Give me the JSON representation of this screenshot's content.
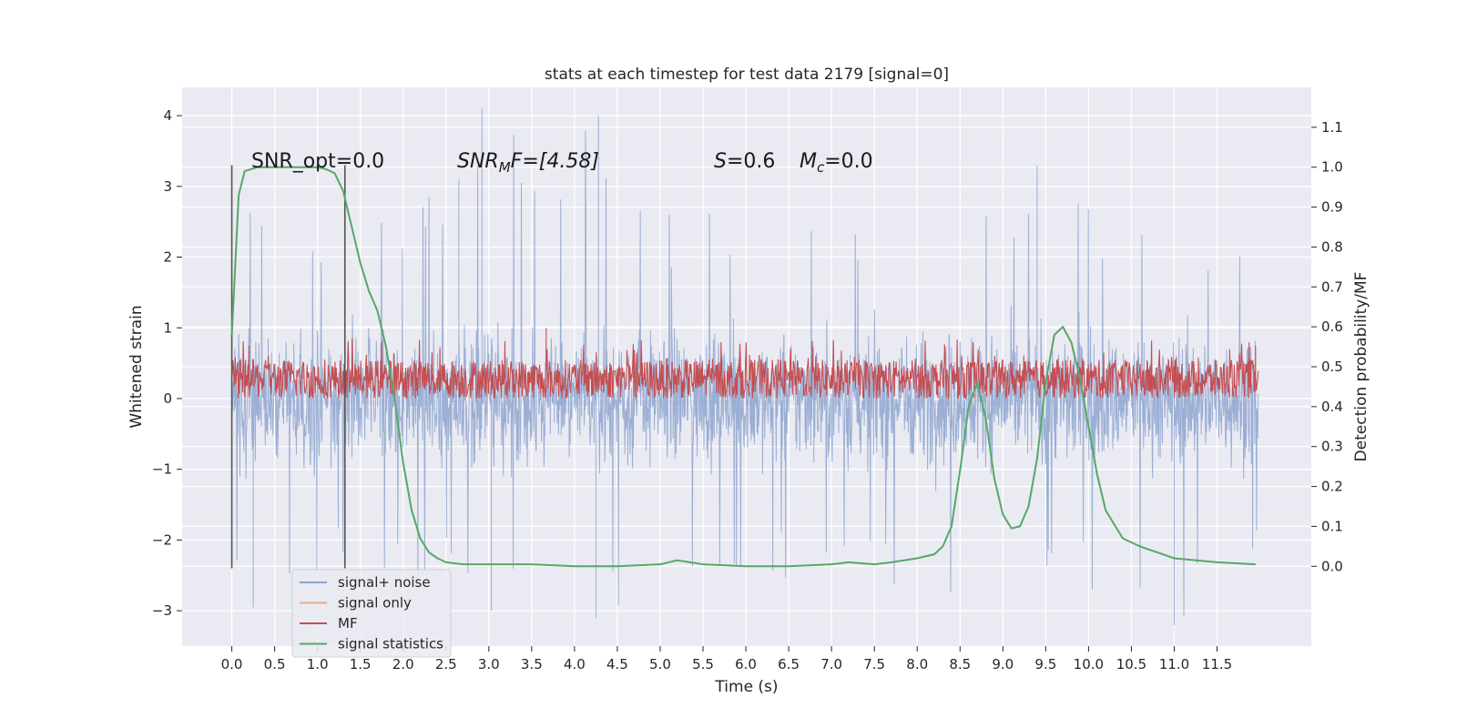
{
  "chart_data": {
    "type": "line",
    "title": "stats at each timestep for test data 2179 [signal=0]",
    "xlabel": "Time (s)",
    "ylabel_left": "Whitened strain",
    "ylabel_right": "Detection probability/MF",
    "xlim": [
      -0.58,
      12.6
    ],
    "ylim_left": [
      -3.5,
      4.4
    ],
    "ylim_right": [
      -0.2,
      1.2
    ],
    "grid": true,
    "x_ticks": [
      "0.0",
      "0.5",
      "1.0",
      "1.5",
      "2.0",
      "2.5",
      "3.0",
      "3.5",
      "4.0",
      "4.5",
      "5.0",
      "5.5",
      "6.0",
      "6.5",
      "7.0",
      "7.5",
      "8.0",
      "8.5",
      "9.0",
      "9.5",
      "10.0",
      "10.5",
      "11.0",
      "11.5"
    ],
    "y_ticks_left": [
      "−3",
      "−2",
      "−1",
      "0",
      "1",
      "2",
      "3",
      "4"
    ],
    "y_ticks_right": [
      "0.0",
      "0.1",
      "0.2",
      "0.3",
      "0.4",
      "0.5",
      "0.6",
      "0.7",
      "0.8",
      "0.9",
      "1.0",
      "1.1"
    ],
    "annotations": {
      "snr_opt": "SNR_opt=0.0",
      "snr_mf_var": "SNR",
      "snr_mf_sub": "M",
      "snr_mf_rest": "F=[4.58]",
      "s_var": "S",
      "s_rest": "=0.6",
      "mc_var": "M",
      "mc_sub": "c",
      "mc_rest": "=0.0"
    },
    "vlines": {
      "x": [
        0.0,
        1.32
      ],
      "y_range": [
        -2.4,
        3.3
      ]
    },
    "legend": {
      "position": "lower-left",
      "entries": [
        {
          "label": "signal+ noise",
          "color": "#8da4cf"
        },
        {
          "label": "signal only",
          "color": "#e9a990"
        },
        {
          "label": "MF",
          "color": "#c44e52"
        },
        {
          "label": "signal statistics",
          "color": "#55a868"
        }
      ]
    },
    "series": [
      {
        "name": "signal+ noise",
        "axis": "left",
        "color": "#8da4cf",
        "x_range": [
          0.0,
          11.98
        ],
        "envelope_x": [
          0.0,
          1.0,
          2.0,
          3.0,
          4.0,
          5.0,
          6.0,
          7.0,
          8.0,
          9.0,
          10.0,
          11.0,
          11.98
        ],
        "envelope_upper": [
          2.6,
          2.8,
          2.4,
          4.1,
          4.0,
          2.8,
          2.6,
          2.7,
          3.2,
          3.3,
          2.9,
          2.5,
          2.2
        ],
        "envelope_lower": [
          -2.6,
          -2.5,
          -2.8,
          -3.0,
          -3.1,
          -2.9,
          -2.6,
          -2.5,
          -3.0,
          -2.8,
          -2.7,
          -3.2,
          -2.4
        ],
        "peaks": [
          {
            "x": 2.92,
            "y": 4.1
          },
          {
            "x": 4.28,
            "y": 4.0
          },
          {
            "x": 2.65,
            "y": 3.1
          },
          {
            "x": 9.4,
            "y": 3.3
          },
          {
            "x": 4.25,
            "y": -3.1
          },
          {
            "x": 11.0,
            "y": -3.2
          },
          {
            "x": 0.25,
            "y": -2.95
          },
          {
            "x": 3.03,
            "y": -3.0
          }
        ]
      },
      {
        "name": "MF",
        "axis": "left",
        "color": "#c44e52",
        "x_range": [
          0.0,
          11.98
        ],
        "band_lower": 0.0,
        "band_upper": 0.55,
        "peaks": [
          {
            "x": 3.67,
            "y": 1.0
          },
          {
            "x": 0.2,
            "y": 0.75
          },
          {
            "x": 11.95,
            "y": 0.75
          }
        ]
      },
      {
        "name": "signal statistics",
        "axis": "right",
        "color": "#55a868",
        "x": [
          0.0,
          0.08,
          0.15,
          0.3,
          0.5,
          0.8,
          1.0,
          1.1,
          1.2,
          1.3,
          1.4,
          1.5,
          1.6,
          1.7,
          1.8,
          1.9,
          2.0,
          2.1,
          2.2,
          2.3,
          2.4,
          2.5,
          2.7,
          3.0,
          3.5,
          4.0,
          4.5,
          5.0,
          5.2,
          5.5,
          6.0,
          6.5,
          7.0,
          7.2,
          7.5,
          7.7,
          8.0,
          8.2,
          8.3,
          8.4,
          8.5,
          8.6,
          8.7,
          8.8,
          8.9,
          9.0,
          9.1,
          9.2,
          9.3,
          9.4,
          9.5,
          9.6,
          9.7,
          9.8,
          9.9,
          10.0,
          10.1,
          10.2,
          10.4,
          10.6,
          10.8,
          11.0,
          11.5,
          11.95
        ],
        "y": [
          0.58,
          0.93,
          0.99,
          1.0,
          1.0,
          1.0,
          1.0,
          0.995,
          0.985,
          0.94,
          0.85,
          0.76,
          0.69,
          0.64,
          0.55,
          0.42,
          0.26,
          0.14,
          0.07,
          0.035,
          0.02,
          0.01,
          0.005,
          0.005,
          0.005,
          0.0,
          0.0,
          0.005,
          0.015,
          0.005,
          0.0,
          0.0,
          0.005,
          0.01,
          0.005,
          0.01,
          0.02,
          0.03,
          0.05,
          0.1,
          0.24,
          0.4,
          0.46,
          0.37,
          0.22,
          0.13,
          0.095,
          0.1,
          0.15,
          0.27,
          0.46,
          0.58,
          0.6,
          0.56,
          0.47,
          0.35,
          0.23,
          0.14,
          0.07,
          0.05,
          0.035,
          0.02,
          0.01,
          0.005
        ]
      }
    ]
  }
}
